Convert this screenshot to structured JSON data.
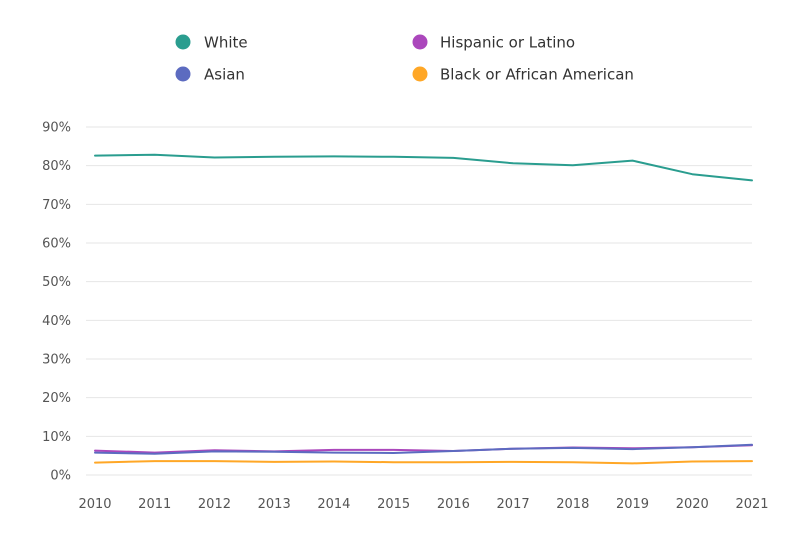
{
  "chart_data": {
    "type": "line",
    "title": "",
    "xlabel": "",
    "ylabel": "",
    "x": [
      "2010",
      "2011",
      "2012",
      "2013",
      "2014",
      "2015",
      "2016",
      "2017",
      "2018",
      "2019",
      "2020",
      "2021"
    ],
    "y_ticks": [
      "0%",
      "10%",
      "20%",
      "30%",
      "40%",
      "50%",
      "60%",
      "70%",
      "80%",
      "90%"
    ],
    "ylim": [
      0,
      90
    ],
    "grid": true,
    "legend_position": "top",
    "series": [
      {
        "name": "White",
        "color": "#2a9d8f",
        "values": [
          82.6,
          82.8,
          82.1,
          82.3,
          82.4,
          82.3,
          82.0,
          80.6,
          80.1,
          81.3,
          77.8,
          76.2
        ]
      },
      {
        "name": "Hispanic or Latino",
        "color": "#ab47bc",
        "values": [
          6.3,
          5.8,
          6.4,
          6.1,
          6.5,
          6.5,
          6.2,
          6.8,
          7.1,
          6.9,
          7.2,
          7.7
        ]
      },
      {
        "name": "Asian",
        "color": "#5c6bc0",
        "values": [
          5.8,
          5.5,
          6.1,
          6.0,
          5.8,
          5.7,
          6.2,
          6.8,
          7.0,
          6.7,
          7.2,
          7.8
        ]
      },
      {
        "name": "Black or African American",
        "color": "#ffa726",
        "values": [
          3.2,
          3.6,
          3.6,
          3.4,
          3.5,
          3.3,
          3.3,
          3.4,
          3.3,
          3.0,
          3.5,
          3.6
        ]
      }
    ]
  }
}
